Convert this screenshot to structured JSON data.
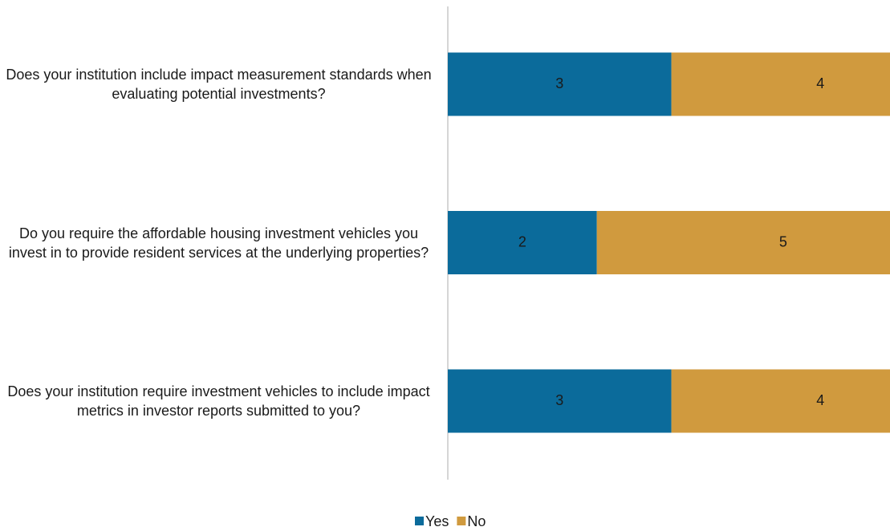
{
  "chart_data": {
    "type": "stacked-barh",
    "categories": [
      "Does your institution include impact measurement standards when evaluating potential investments?",
      "Do you require the affordable housing investment vehicles you invest in to provide resident services at the underlying properties?",
      "Does your institution require investment vehicles to include impact metrics in investor reports submitted to you?"
    ],
    "series": [
      {
        "name": "Yes",
        "color": "#0b6b9b",
        "values": [
          3,
          2,
          3
        ]
      },
      {
        "name": "No",
        "color": "#d09a3e",
        "values": [
          4,
          5,
          4
        ]
      }
    ],
    "xlim": [
      0,
      7
    ],
    "legend": "bottom"
  }
}
